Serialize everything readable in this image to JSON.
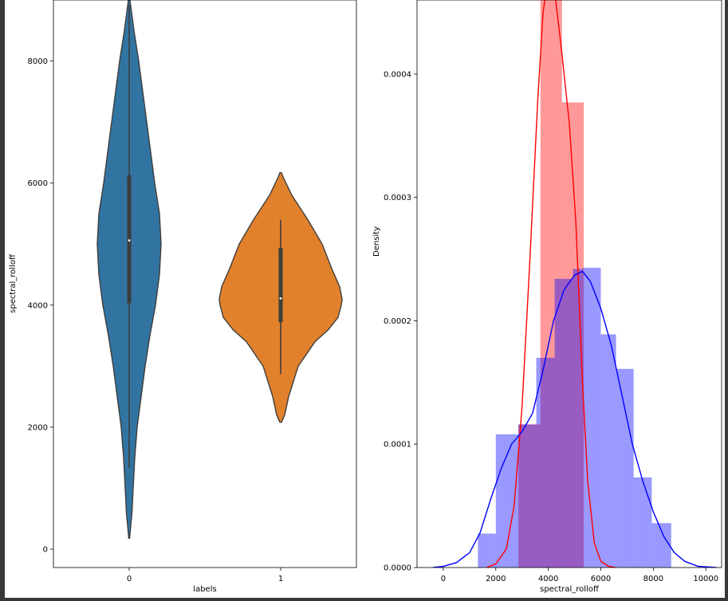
{
  "chart_data": [
    {
      "type": "violin",
      "xlabel": "labels",
      "ylabel": "spectral_rolloff",
      "categories": [
        "0",
        "1"
      ],
      "ylim": [
        -300,
        9000
      ],
      "yticks": [
        0,
        2000,
        4000,
        6000,
        8000
      ],
      "colors": [
        "#3274a1",
        "#e1812c"
      ],
      "series": [
        {
          "category": "0",
          "min": 180,
          "q1": 4030,
          "median": 5060,
          "q3": 6130,
          "max": 8920,
          "whisker_low": 1330,
          "whisker_high": 8920,
          "profile": [
            [
              180,
              0.5
            ],
            [
              600,
              3.5
            ],
            [
              1000,
              5
            ],
            [
              1500,
              7
            ],
            [
              2000,
              10
            ],
            [
              2500,
              15
            ],
            [
              3000,
              20
            ],
            [
              3500,
              26
            ],
            [
              4000,
              33
            ],
            [
              4500,
              38
            ],
            [
              5000,
              40
            ],
            [
              5500,
              38
            ],
            [
              6000,
              32
            ],
            [
              6500,
              27
            ],
            [
              7000,
              22
            ],
            [
              7500,
              17
            ],
            [
              8000,
              12
            ],
            [
              8500,
              6
            ],
            [
              8900,
              2
            ],
            [
              9000,
              1
            ]
          ]
        },
        {
          "category": "1",
          "min": 2080,
          "q1": 3720,
          "median": 4110,
          "q3": 4940,
          "max": 6170,
          "whisker_low": 2870,
          "whisker_high": 5400,
          "profile": [
            [
              2080,
              1
            ],
            [
              2200,
              5
            ],
            [
              2500,
              10
            ],
            [
              3000,
              22
            ],
            [
              3400,
              43
            ],
            [
              3600,
              60
            ],
            [
              3800,
              72
            ],
            [
              4000,
              76
            ],
            [
              4100,
              77
            ],
            [
              4300,
              74
            ],
            [
              4600,
              64
            ],
            [
              5000,
              52
            ],
            [
              5400,
              34
            ],
            [
              5800,
              14
            ],
            [
              6100,
              3
            ],
            [
              6170,
              1
            ]
          ]
        }
      ]
    },
    {
      "type": "histogram",
      "xlabel": "spectral_rolloff",
      "ylabel": "Density",
      "xlim": [
        -1000,
        10600
      ],
      "ylim": [
        0,
        0.00046
      ],
      "xticks": [
        0,
        2000,
        4000,
        6000,
        8000,
        10000
      ],
      "xtick_labels": [
        "0",
        "2000",
        "4000",
        "6000",
        "8000",
        "10000"
      ],
      "yticks": [
        0,
        0.0001,
        0.0002,
        0.0003,
        0.0004
      ],
      "ytick_labels": [
        "0.0000",
        "0.0001",
        "0.0002",
        "0.0003",
        "0.0004"
      ],
      "series": [
        {
          "color": "#ff0000",
          "bins": [
            [
              2860,
              3700,
              0.000116
            ],
            [
              3700,
              4520,
              0.000469
            ],
            [
              4520,
              5350,
              0.000377
            ]
          ],
          "kde": [
            [
              1650,
              0
            ],
            [
              2000,
              3e-06
            ],
            [
              2400,
              1.5e-05
            ],
            [
              2700,
              5e-05
            ],
            [
              3000,
              0.00013
            ],
            [
              3300,
              0.00025
            ],
            [
              3600,
              0.00038
            ],
            [
              3800,
              0.00045
            ],
            [
              4000,
              0.00048
            ],
            [
              4200,
              0.000475
            ],
            [
              4500,
              0.00042
            ],
            [
              4800,
              0.00036
            ],
            [
              5050,
              0.00028
            ],
            [
              5300,
              0.00015
            ],
            [
              5500,
              7e-05
            ],
            [
              5750,
              2e-05
            ],
            [
              6000,
              5e-06
            ],
            [
              6300,
              1e-06
            ],
            [
              6550,
              0
            ]
          ]
        },
        {
          "color": "#0000ff",
          "bins": [
            [
              1320,
              2000,
              2.75e-05
            ],
            [
              2000,
              2860,
              0.000108
            ],
            [
              2860,
              3540,
              0.000116
            ],
            [
              3540,
              4240,
              0.00017
            ],
            [
              4240,
              4940,
              0.000234
            ],
            [
              4940,
              5320,
              0.000242
            ],
            [
              5320,
              6000,
              0.000243
            ],
            [
              6000,
              6580,
              0.000189
            ],
            [
              6580,
              7250,
              0.000161
            ],
            [
              7250,
              7940,
              7.3e-05
            ],
            [
              7940,
              8680,
              3.6e-05
            ]
          ],
          "kde": [
            [
              -400,
              0
            ],
            [
              0,
              1e-06
            ],
            [
              500,
              4e-06
            ],
            [
              1000,
              1.2e-05
            ],
            [
              1400,
              2.8e-05
            ],
            [
              1800,
              5.5e-05
            ],
            [
              2200,
              8e-05
            ],
            [
              2600,
              0.0001
            ],
            [
              3000,
              0.00011
            ],
            [
              3400,
              0.000125
            ],
            [
              3800,
              0.00016
            ],
            [
              4200,
              0.0002
            ],
            [
              4600,
              0.000225
            ],
            [
              5000,
              0.000237
            ],
            [
              5300,
              0.00024
            ],
            [
              5600,
              0.000232
            ],
            [
              6000,
              0.00021
            ],
            [
              6400,
              0.00018
            ],
            [
              6800,
              0.00014
            ],
            [
              7200,
              0.0001
            ],
            [
              7600,
              7e-05
            ],
            [
              8000,
              4.5e-05
            ],
            [
              8400,
              2.5e-05
            ],
            [
              8800,
              1.2e-05
            ],
            [
              9200,
              5e-06
            ],
            [
              9700,
              1e-06
            ],
            [
              10400,
              0
            ]
          ]
        }
      ]
    }
  ]
}
